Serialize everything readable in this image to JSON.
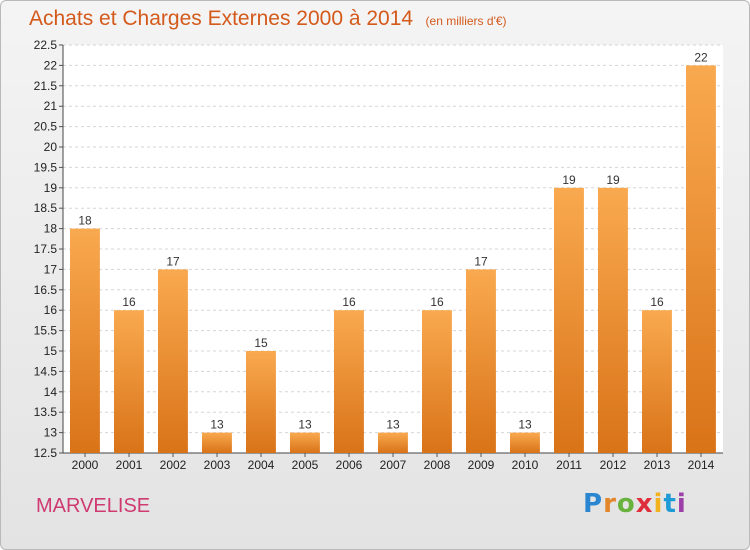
{
  "header": {
    "title": "Achats et Charges Externes 2000 à 2014",
    "unit": "(en milliers d'€)"
  },
  "footer": {
    "commune": "MARVELISE",
    "brand": "Proxiti"
  },
  "colors": {
    "bar_top": "#f9a94f",
    "bar_bottom": "#d97318",
    "title": "#d45a1c",
    "commune": "#cf3a70",
    "brand_letters": [
      "#2a86d0",
      "#e3862a",
      "#6ab23e",
      "#e02f3c",
      "#f2b21d",
      "#1e9ad6",
      "#9c3fa8"
    ]
  },
  "chart_data": {
    "type": "bar",
    "categories": [
      "2000",
      "2001",
      "2002",
      "2003",
      "2004",
      "2005",
      "2006",
      "2007",
      "2008",
      "2009",
      "2010",
      "2011",
      "2012",
      "2013",
      "2014"
    ],
    "values": [
      18,
      16,
      17,
      13,
      15,
      13,
      16,
      13,
      16,
      17,
      13,
      19,
      19,
      16,
      22
    ],
    "ylim": [
      12.5,
      22.5
    ],
    "yticks": [
      "12.5",
      "13",
      "13.5",
      "14",
      "14.5",
      "15",
      "15.5",
      "16",
      "16.5",
      "17",
      "17.5",
      "18",
      "18.5",
      "19",
      "19.5",
      "20",
      "20.5",
      "21",
      "21.5",
      "22",
      "22.5"
    ],
    "xlabel": "",
    "ylabel": "",
    "grid": true
  }
}
